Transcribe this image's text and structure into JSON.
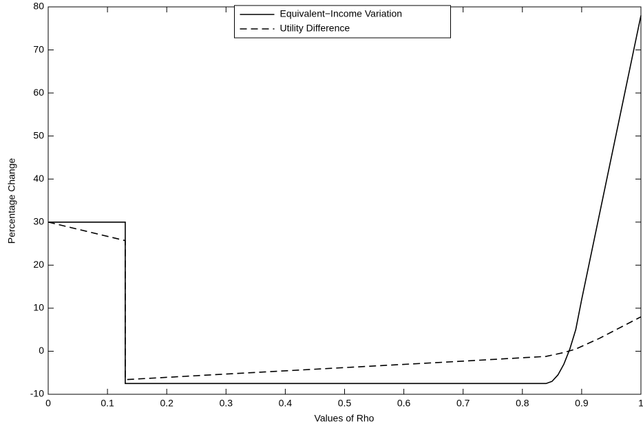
{
  "chart_data": {
    "type": "line",
    "x_label": "Values of Rho",
    "y_label": "Percentage Change",
    "xlim": [
      0,
      1
    ],
    "xticks": [
      0,
      0.1,
      0.2,
      0.3,
      0.4,
      0.5,
      0.6,
      0.7,
      0.8,
      0.9,
      1
    ],
    "ylim": [
      -10,
      80
    ],
    "yticks": [
      -10,
      0,
      10,
      20,
      30,
      40,
      50,
      60,
      70,
      80
    ],
    "grid": false,
    "legend": "upper center",
    "series": [
      {
        "name": "Equivalent−Income Variation",
        "color": "#000000",
        "linestyle": "solid",
        "x": [
          0,
          0.13,
          0.13,
          0.84,
          0.85,
          0.86,
          0.87,
          0.88,
          0.89,
          0.9,
          0.95,
          1
        ],
        "values": [
          30,
          30,
          -7.5,
          -7.5,
          -7,
          -5.5,
          -3,
          0.5,
          5,
          12,
          45,
          78
        ]
      },
      {
        "name": "Utility Difference",
        "color": "#000000",
        "linestyle": "dashed",
        "x": [
          0,
          0.13,
          0.13,
          0.3,
          0.5,
          0.7,
          0.84,
          0.87,
          0.89,
          0.93,
          1
        ],
        "values": [
          30,
          25.7,
          -6.6,
          -5.3,
          -3.8,
          -2.3,
          -1.2,
          -0.3,
          0.5,
          3,
          8
        ]
      }
    ]
  }
}
